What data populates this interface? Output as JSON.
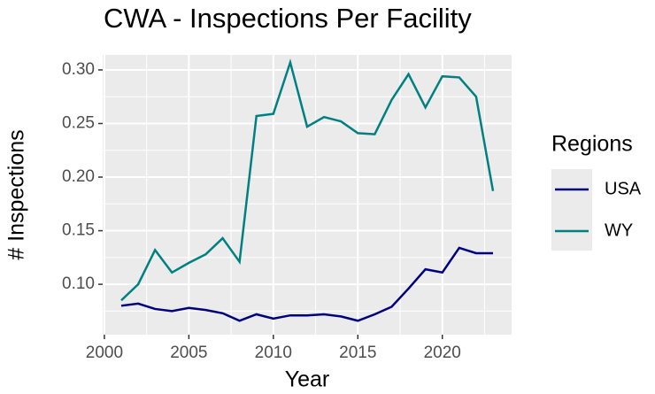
{
  "chart_data": {
    "type": "line",
    "title": "CWA - Inspections Per Facility",
    "xlabel": "Year",
    "ylabel": "# Inspections",
    "legend_title": "Regions",
    "x": [
      2001,
      2002,
      2003,
      2004,
      2005,
      2006,
      2007,
      2008,
      2009,
      2010,
      2011,
      2012,
      2013,
      2014,
      2015,
      2016,
      2017,
      2018,
      2019,
      2020,
      2021,
      2022,
      2023
    ],
    "series": [
      {
        "name": "USA",
        "color": "#000080",
        "values": [
          0.08,
          0.082,
          0.077,
          0.075,
          0.078,
          0.076,
          0.073,
          0.066,
          0.072,
          0.068,
          0.071,
          0.071,
          0.072,
          0.07,
          0.066,
          0.072,
          0.079,
          0.096,
          0.114,
          0.111,
          0.134,
          0.129,
          0.129
        ]
      },
      {
        "name": "WY",
        "color": "#008080",
        "values": [
          0.085,
          0.1,
          0.132,
          0.111,
          0.12,
          0.128,
          0.143,
          0.121,
          0.257,
          0.259,
          0.307,
          0.247,
          0.256,
          0.252,
          0.241,
          0.24,
          0.272,
          0.296,
          0.265,
          0.294,
          0.293,
          0.275,
          0.187
        ]
      }
    ],
    "xlim": [
      1999.9,
      2024.1
    ],
    "xticks": [
      2000,
      2005,
      2010,
      2015,
      2020
    ],
    "ylim": [
      0.053,
      0.314
    ],
    "yticks": [
      {
        "value": 0.1,
        "label": "0.10"
      },
      0.15,
      {
        "value": 0.2,
        "label": "0.20"
      },
      0.25,
      {
        "value": 0.3,
        "label": "0.30"
      }
    ],
    "grid": true,
    "legend": "right"
  }
}
